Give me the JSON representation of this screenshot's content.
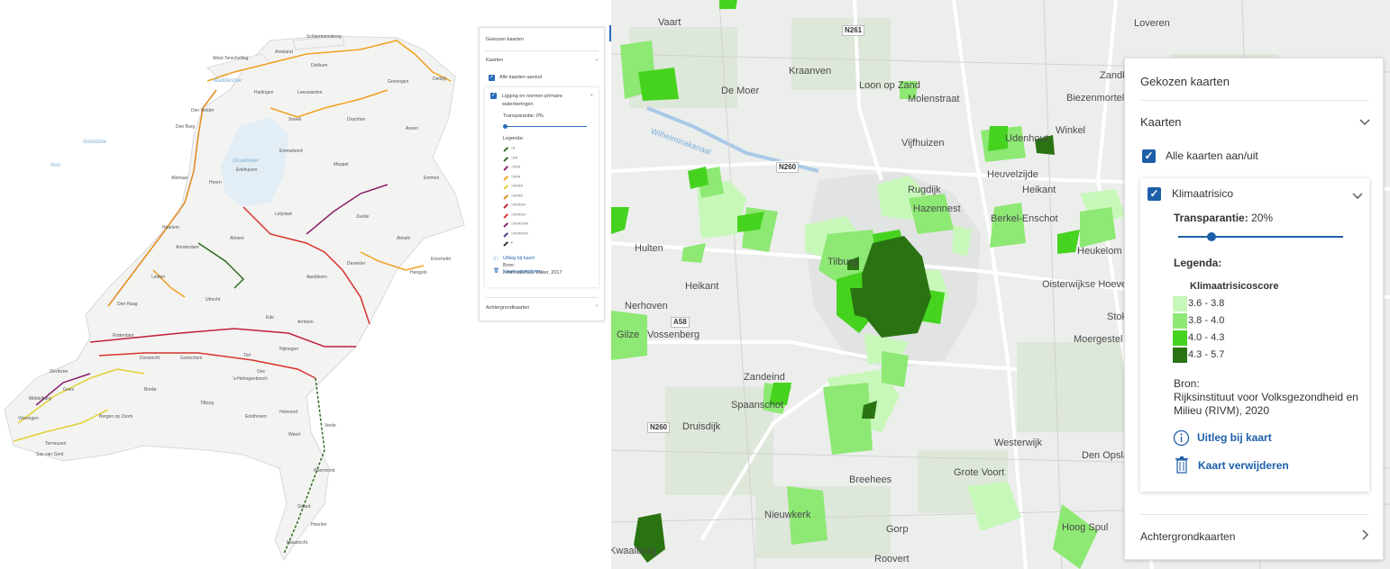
{
  "left_map": {
    "sea_labels": [
      "Waddenzee",
      "IJsselmeer",
      "Noordzee",
      "Noo"
    ],
    "place_labels": [
      "Schiermonnikoog",
      "West-Terschelling",
      "Ameland",
      "Dokkum",
      "Groningen",
      "Delfzijl",
      "Harlingen",
      "Leeuwarden",
      "Den Helder",
      "Den Burg",
      "Sneek",
      "Drachten",
      "Assen",
      "Emmen",
      "Alkmaar",
      "Hoorn",
      "Enkhuizen",
      "Lelystad",
      "Zwolle",
      "Almelo",
      "Enschede",
      "Haarlem",
      "Amsterdam",
      "Almere",
      "Apeldoorn",
      "Leiden",
      "Den Haag",
      "Utrecht",
      "Arnhem",
      "Nijmegen",
      "Rotterdam",
      "Dordrecht",
      "Breda",
      "Tilburg",
      "Eindhoven",
      "'s-Hertogenbosch",
      "Middelburg",
      "Vlissingen",
      "Venlo",
      "Roermond",
      "Maastricht",
      "Sittard",
      "Heerlen",
      "Bergen op Zoom",
      "Goes",
      "Zierikzee",
      "Gorinchem",
      "Deventer",
      "Hengelo",
      "Emmeloord",
      "Meppel",
      "Ede",
      "Tiel",
      "Oss",
      "Helmond",
      "Weert",
      "Terneuzen",
      "Sas van Gent"
    ]
  },
  "small_panel": {
    "title": "Gekozen kaarten",
    "kaarten": "Kaarten",
    "all_toggle": "Alle kaarten aan/uit",
    "layer": "Ligging en normen primaire waterkeringen",
    "transparency": "Transparantie: 0%",
    "legend_title": "Legenda:",
    "legend_items": [
      ":>",
      ":>>",
      ":>>>",
      ":>>>",
      ":>>>>",
      ":>>>>",
      ":>>>>>",
      ":>>>>>",
      ":>>>>>>",
      ":>>>>>>",
      ""
    ],
    "bron_label": "Bron:",
    "bron_value": "Informatiehuis Water, 2017",
    "uitleg": "Uitleg bij kaart",
    "verwijderen": "Kaart verwijderen",
    "achtergrond": "Achtergrondkaarten"
  },
  "right_map": {
    "places": [
      "Vaart",
      "Kraanven",
      "De Moer",
      "Loon op Zand",
      "Molenstraat",
      "Vijfhuizen",
      "Rugdijk",
      "Hazennest",
      "Heuvelzijde",
      "Heikant",
      "Berkel-Enschot",
      "Heukelom",
      "Udenhout",
      "Winkel",
      "Zandkant",
      "Biezenmortel",
      "Hulten",
      "Tilburg",
      "Heikant",
      "Nerhoven",
      "Gilze",
      "Vossenberg",
      "Zandeind",
      "Spaanschot",
      "Druisdijk",
      "Breehees",
      "Nieuwkerk",
      "Gorp",
      "Roovert",
      "Westerwijk",
      "Grote Voort",
      "Kwaalburg",
      "Hoog Spul",
      "Oisterwijkse Hoeven",
      "Moergestel",
      "Den Opslag",
      "Stokse",
      "Loveren",
      "Wilhelminakanaal"
    ],
    "roads": [
      "N261",
      "N260",
      "A58",
      "N260"
    ]
  },
  "panel": {
    "title": "Gekozen kaarten",
    "kaarten": "Kaarten",
    "all_toggle": "Alle kaarten aan/uit",
    "layer": "Klimaatrisico",
    "transparency": "Transparantie: 20%",
    "transparency_value": 0.2,
    "legend_title": "Legenda:",
    "legend_subtitle": "Klimaatrisicoscore",
    "legend": [
      {
        "label": "3.6 - 3.8",
        "color": "#c8f7ba"
      },
      {
        "label": "3.8 - 4.0",
        "color": "#8ee874"
      },
      {
        "label": "4.0 - 4.3",
        "color": "#46d31f"
      },
      {
        "label": "4.3 - 5.7",
        "color": "#2a7312"
      }
    ],
    "bron_label": "Bron:",
    "bron_value": "Rijksinstituut voor Volksgezondheid en Milieu (RIVM), 2020",
    "uitleg": "Uitleg bij kaart",
    "verwijderen": "Kaart verwijderen",
    "achtergrond": "Achtergrondkaarten"
  },
  "colors": {
    "accent": "#1d5fa8",
    "map_bg": "#eceeec"
  },
  "icons": [
    "info-icon",
    "trash-icon",
    "chevron-down-icon",
    "chevron-right-icon",
    "checkbox-checked-icon"
  ]
}
